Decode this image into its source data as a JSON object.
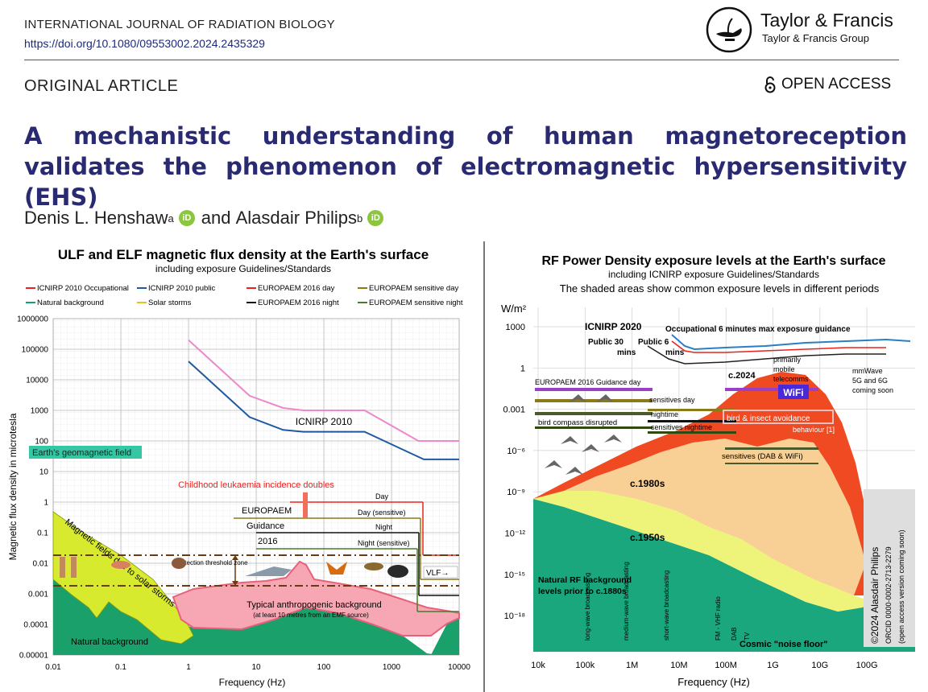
{
  "header": {
    "journal": "INTERNATIONAL JOURNAL OF RADIATION BIOLOGY",
    "doi": "https://doi.org/10.1080/09553002.2024.2435329",
    "publisher": "Taylor & Francis",
    "publisher_group": "Taylor & Francis Group",
    "logo_icon": "lamp-logo-icon"
  },
  "article": {
    "type": "ORIGINAL ARTICLE",
    "access": "OPEN ACCESS",
    "access_icon": "open-lock-icon",
    "title": "A mechanistic understanding of human magnetoreception validates the phenomenon of electromagnetic hypersensitivity (EHS)",
    "authors": [
      {
        "name": "Denis L. Henshaw",
        "affil": "a"
      },
      {
        "name": "Alasdair Philips",
        "affil": "b"
      }
    ],
    "author_join": "and"
  },
  "chart_data": [
    {
      "type": "line",
      "title": "ULF and ELF magnetic flux density at the Earth's surface",
      "subtitle": "including exposure Guidelines/Standards",
      "xlabel": "Frequency (Hz)",
      "ylabel": "Magnetic flux density in microtesla",
      "xscale": "log",
      "yscale": "log",
      "xlim": [
        0.01,
        10000
      ],
      "ylim": [
        1e-05,
        1000000
      ],
      "xticks": [
        "0.01",
        "0.1",
        "1",
        "10",
        "100",
        "1000",
        "10000"
      ],
      "yticks": [
        "0.00001",
        "0.0001",
        "0.001",
        "0.01",
        "0.1",
        "1",
        "10",
        "100",
        "1000",
        "10000",
        "100000",
        "1000000"
      ],
      "grid": true,
      "legend": [
        "ICNIRP 2010 Occupational",
        "ICNIRP 2010 public",
        "EUROPAEM 2016 day",
        "EUROPAEM sensitive day",
        "Natural background",
        "Solar storms",
        "EUROPAEM 2016 night",
        "EUROPAEM sensitive night"
      ],
      "colors": {
        "occupational": "#ee88cc",
        "public": "#1f5aa0",
        "day": "#e8231f",
        "sensitive_day": "#8a7a1a",
        "natural": "#1aa06a",
        "solar": "#e2c21a",
        "night": "#111111",
        "sensitive_night": "#4b7a2a",
        "anthropogenic": "#f7a7b4"
      },
      "series": [
        {
          "name": "ICNIRP 2010 Occupational",
          "x": [
            1,
            8,
            25,
            50,
            400,
            2500,
            10000
          ],
          "y": [
            200000,
            3000,
            1200,
            1000,
            1000,
            100,
            100
          ]
        },
        {
          "name": "ICNIRP 2010 public",
          "x": [
            1,
            8,
            25,
            50,
            400,
            3000,
            10000
          ],
          "y": [
            40000,
            600,
            230,
            200,
            200,
            25,
            25
          ]
        }
      ],
      "annotations": {
        "icnirp": "ICNIRP 2010",
        "geomagnetic": "Earth's geomagnetic field",
        "leukaemia": "Childhood leukaemia incidence doubles",
        "eu1": "EUROPAEM",
        "eu2": "Guidance",
        "eu3": "2016",
        "day": "Day",
        "day_sens": "Day (sensitive)",
        "night": "Night",
        "night_sens": "Night (sensitive)",
        "solar_storms": "Magnetic fields due to solar storms",
        "detection": "detection threshold zone",
        "anthro": "Typical anthropogenic background",
        "anthro_sub": "(at least 10 metres from an EMF source)",
        "vlf": "VLF→",
        "natural": "Natural background"
      }
    },
    {
      "type": "area",
      "title": "RF Power Density exposure levels at the Earth's surface",
      "subtitle": "including ICNIRP exposure Guidelines/Standards",
      "subtitle2": "The shaded areas show common exposure levels in different periods",
      "xlabel": "Frequency (Hz)",
      "ylabel": "W/m²",
      "xscale": "log",
      "xticks": [
        "10k",
        "100k",
        "1M",
        "10M",
        "100M",
        "1G",
        "10G",
        "100G"
      ],
      "yticks": [
        "1000",
        "1",
        "0.001",
        "10⁻⁶",
        "10⁻⁹",
        "10⁻¹²",
        "10⁻¹⁵",
        "10⁻¹⁸"
      ],
      "colors": {
        "c2024": "#f04a23",
        "c1980": "#f8d095",
        "c1950": "#eef47a",
        "natural": "#1ba77e",
        "occ": "#2a7ec4",
        "pub": "#222222"
      },
      "annotations": {
        "icnirp": "ICNIRP 2020",
        "occ": "Occupational 6 minutes max exposure guidance",
        "pub30": "Public 30",
        "pub30b": "mins",
        "pub6": "Public 6",
        "pub6b": "mins",
        "mobile1": "primarily",
        "mobile2": "mobile",
        "mobile3": "telecomms",
        "mm1": "mmWave",
        "mm2": "5G and 6G",
        "mm3": "coming soon",
        "c2024": "c.2024",
        "wifi": "WiFi",
        "europaem": "EUROPAEM 2016 Guidance day",
        "sens_day": "sensitives day",
        "night": "nightime",
        "sens_night": "sensitives nightime",
        "bird_compass": "bird compass disrupted",
        "bird_insect": "bird & insect avoidance",
        "behaviour": "behaviour [1]",
        "dab_wifi": "sensitives (DAB & WiFi)",
        "c1980": "c.1980s",
        "c1950": "c.1950s",
        "natural1": "Natural RF background",
        "natural2": "levels prior to c.1880s",
        "cosmic": "Cosmic \"noise floor\"",
        "band1": "long-wave broadcasting",
        "band2": "medium-wave broadcasting",
        "band3": "short-wave broadcasting",
        "band4": "FM - VHF radio",
        "band5": "DAB",
        "band6": "TV",
        "copy1": "©2024 Alasdair Philips",
        "copy2": "ORCID 0000-0002-2713-2279",
        "copy3": "(open access version coming soon)"
      }
    }
  ]
}
